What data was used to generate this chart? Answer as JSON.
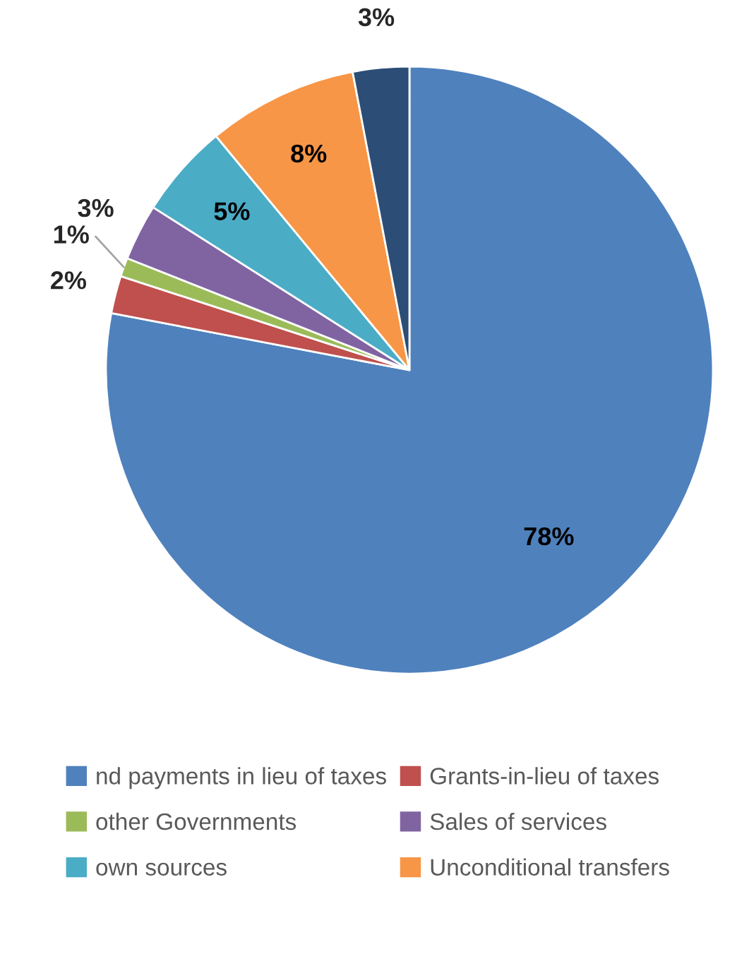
{
  "chart_data": {
    "type": "pie",
    "categories": [
      "nd payments in lieu of taxes",
      "Grants-in-lieu of taxes",
      "other Governments",
      "Sales of services",
      "own sources",
      "Unconditional transfers",
      null
    ],
    "values": [
      78,
      2,
      1,
      3,
      5,
      8,
      3
    ],
    "colors": [
      "#4f81bd",
      "#c0504d",
      "#9bbb59",
      "#8064a2",
      "#4bacc6",
      "#f79646",
      "#2c4d75"
    ],
    "value_labels": [
      "78%",
      "2%",
      "1%",
      "3%",
      "5%",
      "8%",
      "3%"
    ],
    "legend": "bottom"
  }
}
